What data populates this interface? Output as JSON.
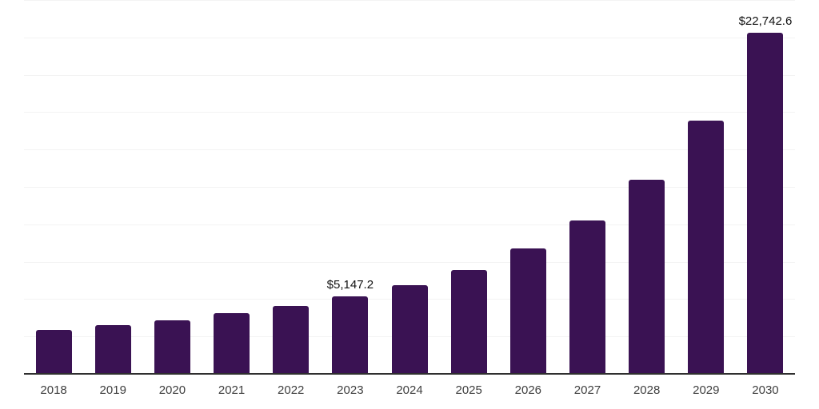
{
  "chart": {
    "background_color": "#ffffff",
    "bar_color": "#3a1253",
    "axis_line_color": "#2f2f2f",
    "gridline_color": "#f3f3f3",
    "x_label_color": "#3f3f3f",
    "value_label_color": "#111111"
  },
  "chart_data": {
    "type": "bar",
    "title": "",
    "xlabel": "",
    "ylabel": "",
    "categories": [
      "2018",
      "2019",
      "2020",
      "2021",
      "2022",
      "2023",
      "2024",
      "2025",
      "2026",
      "2027",
      "2028",
      "2029",
      "2030"
    ],
    "values": [
      2860,
      3200,
      3520,
      4000,
      4500,
      5147.2,
      5870,
      6900,
      8330,
      10230,
      12930,
      16870,
      22742.6
    ],
    "data_labels": [
      "",
      "",
      "",
      "",
      "",
      "$5,147.2",
      "",
      "",
      "",
      "",
      "",
      "",
      "$22,742.6"
    ],
    "currency_prefix": "$",
    "ylim": [
      0,
      25000
    ],
    "gridline_step": 2500,
    "grid": true,
    "legend": false,
    "legend_position": "none"
  }
}
